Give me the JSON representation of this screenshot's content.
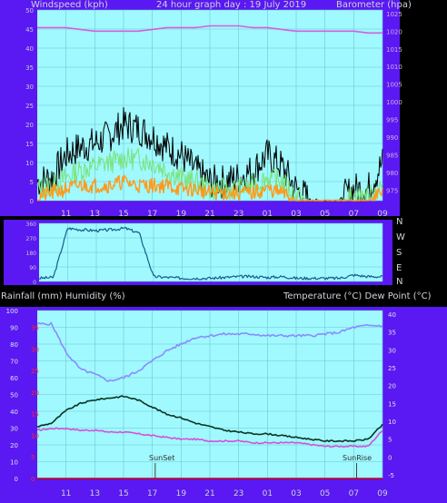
{
  "header": {
    "left": "Windspeed (kph)",
    "center": "24 hour graph day : 19 July 2019",
    "right": "Barometer (hpa)"
  },
  "middle": {
    "dir_labels": [
      "N",
      "W",
      "S",
      "E",
      "N"
    ]
  },
  "lower_header": {
    "left": "Rainfall (mm)  Humidity (%)",
    "right": "Temperature (°C) Dew Point (°C)"
  },
  "annotations": {
    "sunset": "SunSet",
    "sunrise": "SunRise"
  },
  "colors": {
    "panel": "#5a18f2",
    "plot_bg": "#9ff9ff",
    "gust": "#000000",
    "wind_avg": "#7be27b",
    "wind_low": "#ff9a1a",
    "baro": "#d85ce0",
    "dir": "#1b5a8a",
    "humidity": "#8b8bff",
    "temperature": "#0d3322",
    "dewpoint": "#d84fd8",
    "rain": "#cc0000",
    "axis_left": "#ff2a2a"
  },
  "chart_data": [
    {
      "type": "line",
      "title": "24 hour graph day : 19 July 2019",
      "xlabel": "",
      "x_ticks": [
        "11",
        "13",
        "15",
        "17",
        "19",
        "21",
        "23",
        "01",
        "03",
        "05",
        "07",
        "09"
      ],
      "y_left_label": "Windspeed (kph)",
      "y_left_ticks": [
        0,
        5,
        10,
        15,
        20,
        25,
        30,
        35,
        40,
        45,
        50
      ],
      "y_left_range": [
        0,
        50
      ],
      "y_right_label": "Barometer (hpa)",
      "y_right_ticks": [
        975,
        980,
        985,
        990,
        995,
        1000,
        1005,
        1010,
        1015,
        1020,
        1025
      ],
      "y_right_range": [
        972,
        1026
      ],
      "grid": true,
      "series": [
        {
          "name": "Barometer (hpa)",
          "axis": "right",
          "x": [
            "09",
            "10",
            "11",
            "12",
            "13",
            "14",
            "15",
            "16",
            "17",
            "18",
            "19",
            "20",
            "21",
            "22",
            "23",
            "24",
            "01",
            "02",
            "03",
            "04",
            "05",
            "06",
            "07",
            "08",
            "09"
          ],
          "values": [
            1021,
            1021,
            1021,
            1020.5,
            1020,
            1020,
            1020,
            1020,
            1020.5,
            1021,
            1021,
            1021,
            1021.5,
            1021.5,
            1021.5,
            1021,
            1021,
            1020.5,
            1020,
            1020,
            1020,
            1020,
            1020,
            1019.5,
            1019.5
          ]
        },
        {
          "name": "Wind gust (kph)",
          "axis": "left",
          "x": [
            "09",
            "10",
            "11",
            "12",
            "13",
            "14",
            "15",
            "16",
            "17",
            "18",
            "19",
            "20",
            "21",
            "22",
            "23",
            "24",
            "01",
            "02",
            "03",
            "04",
            "05",
            "06",
            "07",
            "08",
            "09"
          ],
          "values": [
            5,
            6,
            12,
            14,
            15,
            17,
            20,
            19,
            17,
            14,
            12,
            8,
            5,
            5,
            6,
            8,
            12,
            9,
            3,
            0,
            0,
            0,
            3,
            3,
            10
          ]
        },
        {
          "name": "Wind average (kph)",
          "axis": "left",
          "x": [
            "09",
            "10",
            "11",
            "12",
            "13",
            "14",
            "15",
            "16",
            "17",
            "18",
            "19",
            "20",
            "21",
            "22",
            "23",
            "24",
            "01",
            "02",
            "03",
            "04",
            "05",
            "06",
            "07",
            "08",
            "09"
          ],
          "values": [
            3,
            4,
            6,
            8,
            9,
            10,
            11,
            11,
            10,
            8,
            6,
            5,
            3,
            3,
            3,
            4,
            6,
            5,
            1,
            0,
            0,
            0,
            1,
            1,
            4
          ]
        },
        {
          "name": "Wind lull (kph)",
          "axis": "left",
          "x": [
            "09",
            "10",
            "11",
            "12",
            "13",
            "14",
            "15",
            "16",
            "17",
            "18",
            "19",
            "20",
            "21",
            "22",
            "23",
            "24",
            "01",
            "02",
            "03",
            "04",
            "05",
            "06",
            "07",
            "08",
            "09"
          ],
          "values": [
            1,
            2,
            3,
            4,
            4,
            4,
            5,
            4,
            4,
            4,
            3,
            3,
            2,
            2,
            2,
            2,
            3,
            2,
            0,
            0,
            0,
            0,
            0,
            0,
            2
          ]
        }
      ]
    },
    {
      "type": "line",
      "title": "",
      "x_ticks": [
        "11",
        "13",
        "15",
        "17",
        "19",
        "21",
        "23",
        "01",
        "03",
        "05",
        "07",
        "09"
      ],
      "y_left_ticks": [
        0,
        90,
        180,
        270,
        360
      ],
      "y_left_range": [
        0,
        360
      ],
      "y_right_ticks": [
        "N",
        "W",
        "S",
        "E",
        "N"
      ],
      "grid": true,
      "series": [
        {
          "name": "Wind direction (deg)",
          "x": [
            "09",
            "10",
            "11",
            "12",
            "13",
            "14",
            "15",
            "16",
            "17",
            "18",
            "19",
            "20",
            "21",
            "22",
            "23",
            "24",
            "01",
            "02",
            "03",
            "04",
            "05",
            "06",
            "07",
            "08",
            "09"
          ],
          "values": [
            20,
            25,
            330,
            320,
            315,
            320,
            330,
            300,
            30,
            25,
            20,
            20,
            20,
            25,
            30,
            30,
            25,
            30,
            20,
            20,
            20,
            20,
            40,
            30,
            30
          ]
        }
      ]
    },
    {
      "type": "line",
      "title": "",
      "x_ticks": [
        "11",
        "13",
        "15",
        "17",
        "19",
        "21",
        "23",
        "01",
        "03",
        "05",
        "07",
        "09"
      ],
      "y_left_label": "Rainfall (mm)  Humidity (%)",
      "y_left_ticks": [
        0,
        10,
        20,
        30,
        40,
        50,
        60,
        70,
        80,
        90,
        100
      ],
      "y_left_range": [
        0,
        100
      ],
      "y_left_red_ticks": [
        0,
        5,
        10,
        15,
        20,
        25,
        30,
        35
      ],
      "y_right_label": "Temperature (°C) Dew Point (°C)",
      "y_right_ticks": [
        -5,
        0,
        5,
        10,
        15,
        20,
        25,
        30,
        35,
        40
      ],
      "y_right_range": [
        -6,
        41
      ],
      "grid": true,
      "series": [
        {
          "name": "Humidity (%)",
          "axis": "left",
          "x": [
            "09",
            "10",
            "11",
            "12",
            "13",
            "14",
            "15",
            "16",
            "17",
            "18",
            "19",
            "20",
            "21",
            "22",
            "23",
            "24",
            "01",
            "02",
            "03",
            "04",
            "05",
            "06",
            "07",
            "08",
            "09"
          ],
          "values": [
            92,
            92,
            75,
            65,
            62,
            58,
            60,
            64,
            70,
            76,
            80,
            84,
            85,
            86,
            86,
            86,
            85,
            85,
            85,
            85,
            86,
            87,
            90,
            91,
            91
          ]
        },
        {
          "name": "Temperature (°C)",
          "axis": "right",
          "x": [
            "09",
            "10",
            "11",
            "12",
            "13",
            "14",
            "15",
            "16",
            "17",
            "18",
            "19",
            "20",
            "21",
            "22",
            "23",
            "24",
            "01",
            "02",
            "03",
            "04",
            "05",
            "06",
            "07",
            "08",
            "09"
          ],
          "values": [
            8.5,
            9.5,
            13,
            15,
            16,
            16.5,
            17,
            16,
            14,
            12,
            11,
            9.5,
            8.5,
            7.5,
            7,
            6.5,
            6.5,
            6,
            5.5,
            5,
            4.5,
            4.5,
            4.5,
            5,
            9
          ]
        },
        {
          "name": "Dew Point (°C)",
          "axis": "right",
          "x": [
            "09",
            "10",
            "11",
            "12",
            "13",
            "14",
            "15",
            "16",
            "17",
            "18",
            "19",
            "20",
            "21",
            "22",
            "23",
            "24",
            "01",
            "02",
            "03",
            "04",
            "05",
            "06",
            "07",
            "08",
            "09"
          ],
          "values": [
            7.5,
            8,
            8,
            7.5,
            7.5,
            7,
            7,
            6.5,
            6,
            5.5,
            5,
            5,
            4.5,
            4.5,
            4.5,
            4,
            4,
            4,
            4,
            3.5,
            3,
            3,
            3,
            3,
            7.5
          ]
        },
        {
          "name": "Rainfall (mm)",
          "axis": "left",
          "x": [
            "09",
            "10",
            "11",
            "12",
            "13",
            "14",
            "15",
            "16",
            "17",
            "18",
            "19",
            "20",
            "21",
            "22",
            "23",
            "24",
            "01",
            "02",
            "03",
            "04",
            "05",
            "06",
            "07",
            "08",
            "09"
          ],
          "values": [
            0,
            0,
            0,
            0,
            0,
            0,
            0,
            0,
            0,
            0,
            0,
            0,
            0,
            0,
            0,
            0,
            0,
            0,
            0,
            0,
            0,
            0,
            0,
            0,
            0
          ]
        }
      ]
    }
  ]
}
